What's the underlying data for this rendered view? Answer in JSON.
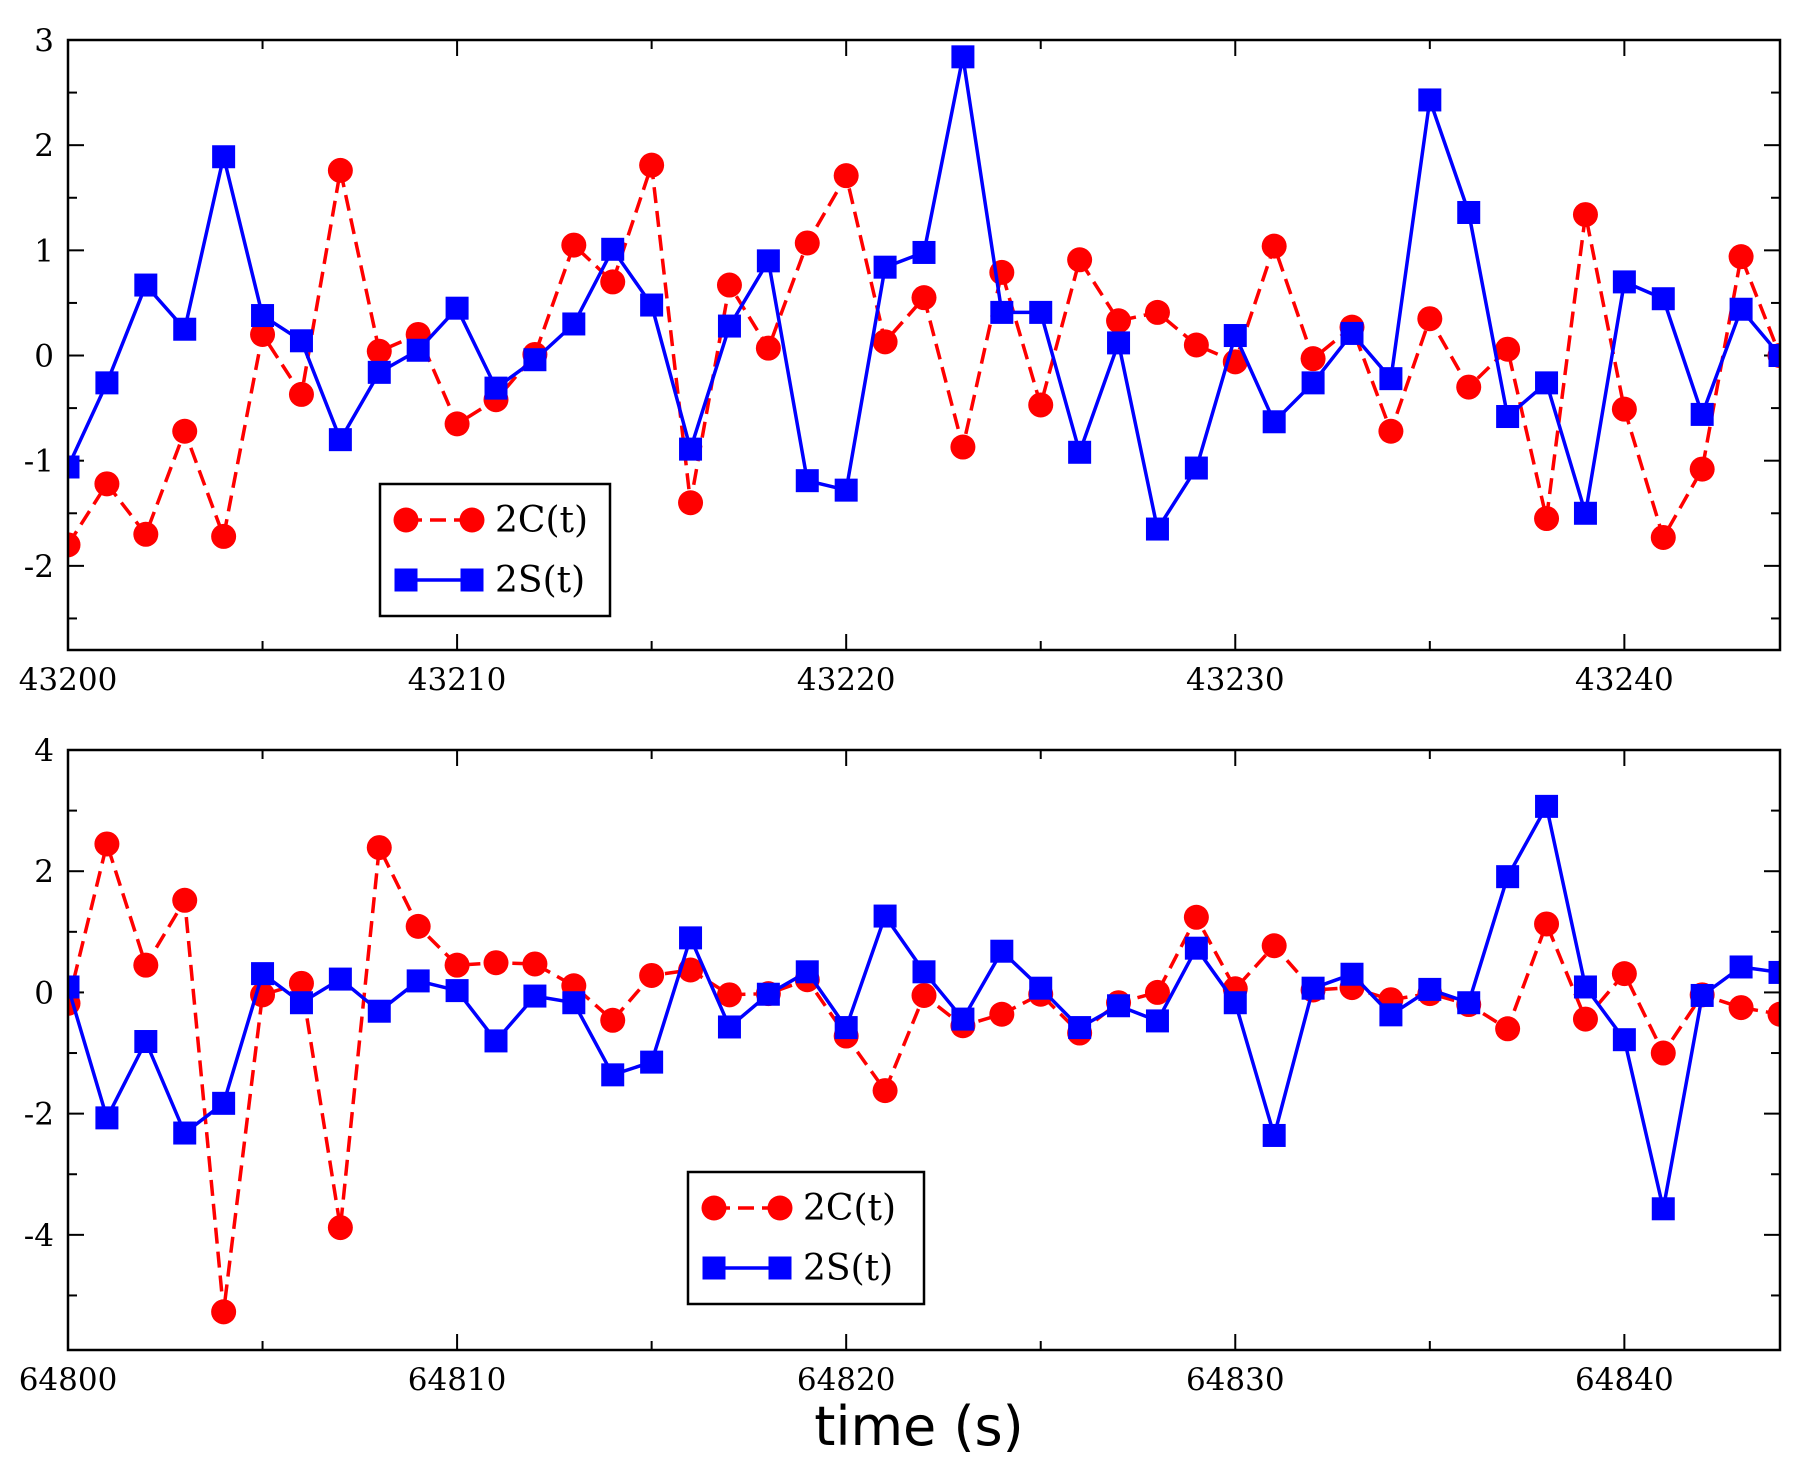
{
  "chart_data": [
    {
      "type": "line",
      "title": "",
      "xlabel": "",
      "ylabel": "",
      "xlim": [
        43200,
        43244
      ],
      "ylim": [
        -2.8,
        3
      ],
      "xticks": [
        43200,
        43210,
        43220,
        43230,
        43240
      ],
      "xtick_labels": [
        "43200",
        "43210",
        "43220",
        "43230",
        "43240"
      ],
      "yticks": [
        -2,
        -1,
        0,
        1,
        2,
        3
      ],
      "ytick_labels": [
        "-2",
        "-1",
        "0",
        "1",
        "2",
        "3"
      ],
      "x": [
        43200,
        43201,
        43202,
        43203,
        43204,
        43205,
        43206,
        43207,
        43208,
        43209,
        43210,
        43211,
        43212,
        43213,
        43214,
        43215,
        43216,
        43217,
        43218,
        43219,
        43220,
        43221,
        43222,
        43223,
        43224,
        43225,
        43226,
        43227,
        43228,
        43229,
        43230,
        43231,
        43232,
        43233,
        43234,
        43235,
        43236,
        43237,
        43238,
        43239,
        43240,
        43241,
        43242,
        43243,
        43244
      ],
      "series": [
        {
          "name": "2C(t)",
          "color": "#ff0000",
          "marker": "circle",
          "line": "dashed",
          "values": [
            -1.8,
            -1.22,
            -1.7,
            -0.72,
            -1.72,
            0.2,
            -0.37,
            1.76,
            0.04,
            0.2,
            -0.65,
            -0.42,
            0.01,
            1.05,
            0.7,
            1.81,
            -1.4,
            0.67,
            0.07,
            1.07,
            1.71,
            0.13,
            0.55,
            -0.87,
            0.79,
            -0.47,
            0.91,
            0.33,
            0.41,
            0.1,
            -0.06,
            1.04,
            -0.03,
            0.27,
            -0.72,
            0.35,
            -0.3,
            0.06,
            -1.55,
            1.34,
            -0.51,
            -1.73,
            -1.08,
            0.94,
            0.0
          ]
        },
        {
          "name": "2S(t)",
          "color": "#0000ff",
          "marker": "square",
          "line": "solid",
          "values": [
            -1.06,
            -0.26,
            0.67,
            0.25,
            1.89,
            0.38,
            0.14,
            -0.8,
            -0.16,
            0.05,
            0.45,
            -0.31,
            -0.04,
            0.3,
            1.01,
            0.48,
            -0.89,
            0.28,
            0.9,
            -1.19,
            -1.28,
            0.84,
            0.98,
            2.84,
            0.41,
            0.41,
            -0.92,
            0.12,
            -1.65,
            -1.07,
            0.19,
            -0.63,
            -0.26,
            0.21,
            -0.22,
            2.43,
            1.36,
            -0.58,
            -0.26,
            -1.5,
            0.7,
            0.54,
            -0.56,
            0.44,
            0.0
          ]
        }
      ],
      "legend": {
        "position": "lower-left",
        "entries": [
          "2C(t)",
          "2S(t)"
        ]
      }
    },
    {
      "type": "line",
      "title": "",
      "xlabel": "time (s)",
      "ylabel": "",
      "xlim": [
        64800,
        64844
      ],
      "ylim": [
        -5.9,
        4
      ],
      "xticks": [
        64800,
        64810,
        64820,
        64830,
        64840
      ],
      "xtick_labels": [
        "64800",
        "64810",
        "64820",
        "64830",
        "64840"
      ],
      "yticks": [
        -4,
        -2,
        0,
        2,
        4
      ],
      "ytick_labels": [
        "-4",
        "-2",
        "0",
        "2",
        "4"
      ],
      "x": [
        64800,
        64801,
        64802,
        64803,
        64804,
        64805,
        64806,
        64807,
        64808,
        64809,
        64810,
        64811,
        64812,
        64813,
        64814,
        64815,
        64816,
        64817,
        64818,
        64819,
        64820,
        64821,
        64822,
        64823,
        64824,
        64825,
        64826,
        64827,
        64828,
        64829,
        64830,
        64831,
        64832,
        64833,
        64834,
        64835,
        64836,
        64837,
        64838,
        64839,
        64840,
        64841,
        64842,
        64843,
        64844
      ],
      "series": [
        {
          "name": "2C(t)",
          "color": "#ff0000",
          "marker": "circle",
          "line": "dashed",
          "values": [
            -0.18,
            2.45,
            0.45,
            1.52,
            -5.27,
            -0.04,
            0.15,
            -3.88,
            2.39,
            1.09,
            0.45,
            0.49,
            0.47,
            0.11,
            -0.46,
            0.28,
            0.37,
            -0.04,
            -0.02,
            0.21,
            -0.72,
            -1.62,
            -0.05,
            -0.55,
            -0.36,
            -0.03,
            -0.67,
            -0.17,
            0.0,
            1.24,
            0.06,
            0.77,
            0.04,
            0.08,
            -0.12,
            -0.02,
            -0.2,
            -0.6,
            1.13,
            -0.44,
            0.31,
            -1.0,
            -0.04,
            -0.25,
            -0.36
          ]
        },
        {
          "name": "2S(t)",
          "color": "#0000ff",
          "marker": "square",
          "line": "solid",
          "values": [
            0.09,
            -2.07,
            -0.81,
            -2.32,
            -1.83,
            0.31,
            -0.17,
            0.22,
            -0.31,
            0.19,
            0.03,
            -0.8,
            -0.06,
            -0.17,
            -1.36,
            -1.15,
            0.9,
            -0.57,
            -0.03,
            0.34,
            -0.58,
            1.26,
            0.34,
            -0.44,
            0.68,
            0.07,
            -0.58,
            -0.22,
            -0.47,
            0.73,
            -0.17,
            -2.36,
            0.07,
            0.3,
            -0.37,
            0.05,
            -0.17,
            1.91,
            3.07,
            0.09,
            -0.78,
            -3.57,
            -0.05,
            0.42,
            0.33
          ]
        }
      ],
      "legend": {
        "position": "lower-center",
        "entries": [
          "2C(t)",
          "2S(t)"
        ]
      }
    }
  ]
}
